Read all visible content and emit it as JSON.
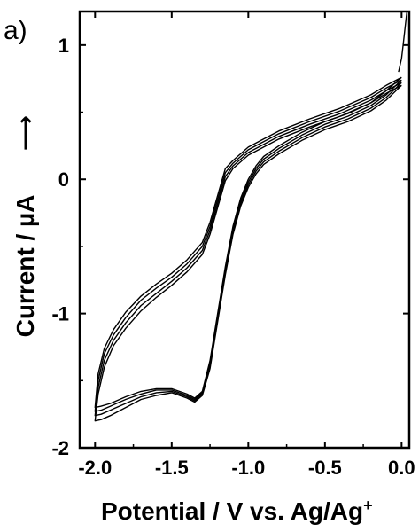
{
  "chart_data": {
    "type": "line",
    "panel_label": "a)",
    "xlabel": "Potential / V vs. Ag/Ag",
    "xlabel_sup": "+",
    "ylabel": "Current / µA",
    "ylabel_arrow": "⟶",
    "xlim": [
      -2.1,
      0.05
    ],
    "ylim": [
      -2.0,
      1.25
    ],
    "xticks": [
      -2.0,
      -1.5,
      -1.0,
      -0.5,
      0.0
    ],
    "xtick_labels": [
      "-2.0",
      "-1.5",
      "-1.0",
      "-0.5",
      "0.0"
    ],
    "yticks": [
      -2,
      -1,
      0,
      1
    ],
    "ytick_labels": [
      "-2",
      "-1",
      "0",
      "1"
    ],
    "grid": false,
    "series": [
      {
        "forward": [
          [
            0.0,
            0.76
          ],
          [
            -0.1,
            0.66
          ],
          [
            -0.2,
            0.57
          ],
          [
            -0.35,
            0.49
          ],
          [
            -0.5,
            0.43
          ],
          [
            -0.65,
            0.35
          ],
          [
            -0.8,
            0.25
          ],
          [
            -0.9,
            0.17
          ],
          [
            -0.95,
            0.1
          ],
          [
            -1.0,
            0.0
          ],
          [
            -1.05,
            -0.14
          ],
          [
            -1.1,
            -0.35
          ],
          [
            -1.15,
            -0.65
          ],
          [
            -1.2,
            -1.0
          ],
          [
            -1.25,
            -1.35
          ],
          [
            -1.3,
            -1.58
          ],
          [
            -1.35,
            -1.63
          ],
          [
            -1.4,
            -1.6
          ],
          [
            -1.5,
            -1.56
          ],
          [
            -1.6,
            -1.56
          ],
          [
            -1.7,
            -1.58
          ],
          [
            -1.8,
            -1.62
          ],
          [
            -1.9,
            -1.67
          ],
          [
            -1.96,
            -1.69
          ],
          [
            -2.0,
            -1.7
          ]
        ],
        "reverse": [
          [
            -2.0,
            -1.7
          ],
          [
            -1.98,
            -1.45
          ],
          [
            -1.94,
            -1.26
          ],
          [
            -1.88,
            -1.12
          ],
          [
            -1.8,
            -0.99
          ],
          [
            -1.7,
            -0.87
          ],
          [
            -1.6,
            -0.78
          ],
          [
            -1.5,
            -0.7
          ],
          [
            -1.4,
            -0.6
          ],
          [
            -1.3,
            -0.47
          ],
          [
            -1.25,
            -0.32
          ],
          [
            -1.2,
            -0.12
          ],
          [
            -1.15,
            0.08
          ],
          [
            -1.1,
            0.14
          ],
          [
            -1.0,
            0.24
          ],
          [
            -0.9,
            0.3
          ],
          [
            -0.8,
            0.36
          ],
          [
            -0.6,
            0.45
          ],
          [
            -0.4,
            0.53
          ],
          [
            -0.2,
            0.63
          ],
          [
            -0.1,
            0.7
          ],
          [
            0.0,
            0.76
          ]
        ]
      },
      {
        "forward": [
          [
            0.0,
            0.74
          ],
          [
            -0.1,
            0.63
          ],
          [
            -0.2,
            0.55
          ],
          [
            -0.35,
            0.47
          ],
          [
            -0.5,
            0.41
          ],
          [
            -0.65,
            0.33
          ],
          [
            -0.8,
            0.23
          ],
          [
            -0.9,
            0.15
          ],
          [
            -0.95,
            0.08
          ],
          [
            -1.0,
            -0.02
          ],
          [
            -1.05,
            -0.16
          ],
          [
            -1.1,
            -0.37
          ],
          [
            -1.15,
            -0.67
          ],
          [
            -1.2,
            -1.02
          ],
          [
            -1.25,
            -1.37
          ],
          [
            -1.3,
            -1.59
          ],
          [
            -1.35,
            -1.64
          ],
          [
            -1.4,
            -1.61
          ],
          [
            -1.5,
            -1.57
          ],
          [
            -1.6,
            -1.57
          ],
          [
            -1.7,
            -1.6
          ],
          [
            -1.8,
            -1.64
          ],
          [
            -1.9,
            -1.69
          ],
          [
            -1.96,
            -1.72
          ],
          [
            -2.0,
            -1.73
          ]
        ],
        "reverse": [
          [
            -2.0,
            -1.73
          ],
          [
            -1.98,
            -1.5
          ],
          [
            -1.94,
            -1.3
          ],
          [
            -1.88,
            -1.16
          ],
          [
            -1.8,
            -1.03
          ],
          [
            -1.7,
            -0.9
          ],
          [
            -1.6,
            -0.81
          ],
          [
            -1.5,
            -0.73
          ],
          [
            -1.4,
            -0.63
          ],
          [
            -1.3,
            -0.5
          ],
          [
            -1.25,
            -0.35
          ],
          [
            -1.2,
            -0.15
          ],
          [
            -1.15,
            0.05
          ],
          [
            -1.1,
            0.12
          ],
          [
            -1.0,
            0.22
          ],
          [
            -0.9,
            0.28
          ],
          [
            -0.8,
            0.34
          ],
          [
            -0.6,
            0.43
          ],
          [
            -0.4,
            0.51
          ],
          [
            -0.2,
            0.61
          ],
          [
            -0.1,
            0.68
          ],
          [
            0.0,
            0.74
          ]
        ]
      },
      {
        "forward": [
          [
            0.0,
            0.72
          ],
          [
            -0.1,
            0.61
          ],
          [
            -0.2,
            0.53
          ],
          [
            -0.35,
            0.45
          ],
          [
            -0.5,
            0.39
          ],
          [
            -0.65,
            0.31
          ],
          [
            -0.8,
            0.21
          ],
          [
            -0.9,
            0.13
          ],
          [
            -0.95,
            0.06
          ],
          [
            -1.0,
            -0.04
          ],
          [
            -1.05,
            -0.18
          ],
          [
            -1.1,
            -0.39
          ],
          [
            -1.15,
            -0.69
          ],
          [
            -1.2,
            -1.04
          ],
          [
            -1.25,
            -1.39
          ],
          [
            -1.3,
            -1.6
          ],
          [
            -1.35,
            -1.65
          ],
          [
            -1.4,
            -1.62
          ],
          [
            -1.5,
            -1.58
          ],
          [
            -1.6,
            -1.59
          ],
          [
            -1.7,
            -1.62
          ],
          [
            -1.8,
            -1.67
          ],
          [
            -1.9,
            -1.72
          ],
          [
            -1.96,
            -1.75
          ],
          [
            -2.0,
            -1.76
          ]
        ],
        "reverse": [
          [
            -2.0,
            -1.76
          ],
          [
            -1.98,
            -1.55
          ],
          [
            -1.94,
            -1.35
          ],
          [
            -1.88,
            -1.2
          ],
          [
            -1.8,
            -1.07
          ],
          [
            -1.7,
            -0.94
          ],
          [
            -1.6,
            -0.85
          ],
          [
            -1.5,
            -0.76
          ],
          [
            -1.4,
            -0.66
          ],
          [
            -1.3,
            -0.53
          ],
          [
            -1.25,
            -0.38
          ],
          [
            -1.2,
            -0.18
          ],
          [
            -1.15,
            0.02
          ],
          [
            -1.1,
            0.1
          ],
          [
            -1.0,
            0.2
          ],
          [
            -0.9,
            0.26
          ],
          [
            -0.8,
            0.32
          ],
          [
            -0.6,
            0.41
          ],
          [
            -0.4,
            0.49
          ],
          [
            -0.2,
            0.59
          ],
          [
            -0.1,
            0.66
          ],
          [
            0.0,
            0.72
          ]
        ]
      },
      {
        "forward": [
          [
            0.0,
            0.7
          ],
          [
            -0.1,
            0.59
          ],
          [
            -0.2,
            0.51
          ],
          [
            -0.35,
            0.43
          ],
          [
            -0.5,
            0.37
          ],
          [
            -0.65,
            0.29
          ],
          [
            -0.8,
            0.19
          ],
          [
            -0.9,
            0.11
          ],
          [
            -0.95,
            0.04
          ],
          [
            -1.0,
            -0.06
          ],
          [
            -1.05,
            -0.2
          ],
          [
            -1.1,
            -0.41
          ],
          [
            -1.15,
            -0.71
          ],
          [
            -1.2,
            -1.06
          ],
          [
            -1.25,
            -1.41
          ],
          [
            -1.3,
            -1.61
          ],
          [
            -1.35,
            -1.66
          ],
          [
            -1.4,
            -1.63
          ],
          [
            -1.5,
            -1.59
          ],
          [
            -1.6,
            -1.61
          ],
          [
            -1.7,
            -1.64
          ],
          [
            -1.8,
            -1.7
          ],
          [
            -1.9,
            -1.76
          ],
          [
            -1.96,
            -1.79
          ],
          [
            -2.0,
            -1.8
          ]
        ],
        "reverse": [
          [
            -2.0,
            -1.8
          ],
          [
            -1.98,
            -1.6
          ],
          [
            -1.94,
            -1.4
          ],
          [
            -1.88,
            -1.24
          ],
          [
            -1.8,
            -1.11
          ],
          [
            -1.7,
            -0.98
          ],
          [
            -1.6,
            -0.88
          ],
          [
            -1.5,
            -0.79
          ],
          [
            -1.4,
            -0.69
          ],
          [
            -1.3,
            -0.56
          ],
          [
            -1.25,
            -0.41
          ],
          [
            -1.2,
            -0.21
          ],
          [
            -1.15,
            -0.01
          ],
          [
            -1.1,
            0.08
          ],
          [
            -1.0,
            0.18
          ],
          [
            -0.9,
            0.24
          ],
          [
            -0.8,
            0.3
          ],
          [
            -0.6,
            0.39
          ],
          [
            -0.4,
            0.47
          ],
          [
            -0.2,
            0.57
          ],
          [
            -0.1,
            0.64
          ],
          [
            0.0,
            0.7
          ]
        ]
      }
    ],
    "anodic_tail": [
      [
        -0.02,
        0.8
      ],
      [
        0.0,
        0.9
      ],
      [
        0.01,
        1.0
      ],
      [
        0.02,
        1.1
      ],
      [
        0.03,
        1.2
      ],
      [
        0.035,
        1.25
      ]
    ],
    "line_color": "#000000"
  }
}
